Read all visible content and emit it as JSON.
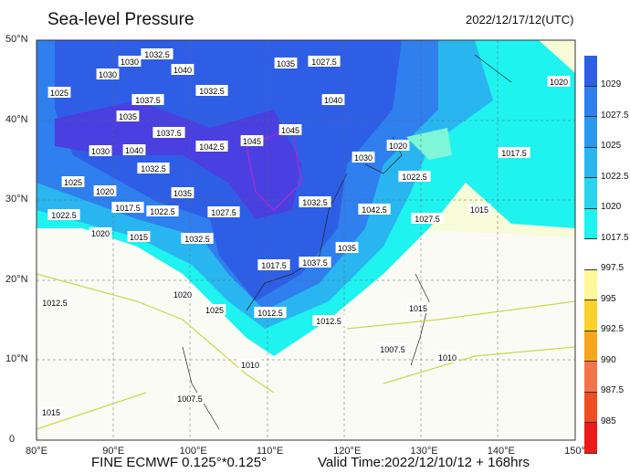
{
  "title": "Sea-level Pressure",
  "valid_time_utc": "2022/12/17/12(UTC)",
  "footer": {
    "model": "FINE ECMWF 0.125°*0.125°",
    "valid": "Valid Time:2022/12/10/12 + 168hrs"
  },
  "axes": {
    "lon_ticks": [
      "80°E",
      "90°E",
      "100°E",
      "110°E",
      "120°E",
      "130°E",
      "140°E",
      "150°E"
    ],
    "lat_ticks": [
      "50°N",
      "40°N",
      "30°N",
      "20°N",
      "10°N",
      "0"
    ]
  },
  "colorbar": {
    "labels": [
      "1029",
      "1027.5",
      "1025",
      "1022.5",
      "1020",
      "1017.5",
      "997.5",
      "995",
      "992.5",
      "990",
      "987.5",
      "985"
    ],
    "colors": [
      "#2e5ee6",
      "#2f7fef",
      "#2a98ef",
      "#29b6f0",
      "#27d4ee",
      "#1ef3f0",
      "#ffffff",
      "#fff799",
      "#fdd12a",
      "#f9a51c",
      "#f4744a",
      "#ee4e22",
      "#ee1a1a"
    ]
  },
  "contour_labels": [
    "1032.5",
    "1030",
    "1040",
    "1030",
    "1035",
    "1037.5",
    "1027.5",
    "1035",
    "1032.5",
    "1040",
    "1025",
    "1020",
    "1045",
    "1030",
    "1040",
    "1037.5",
    "1042.5",
    "1045",
    "1030",
    "1020",
    "1022.5",
    "1020",
    "1025",
    "1032.5",
    "1035",
    "1017.5",
    "1022.5",
    "1032.5",
    "1027.5",
    "1042.5",
    "1027.5",
    "1015",
    "1020",
    "1015",
    "1022.5",
    "1032.5",
    "1035",
    "1037.5",
    "1017.5",
    "1020",
    "1025",
    "1012.5",
    "1012.5",
    "1012.5",
    "1015",
    "1010",
    "1007.5",
    "1010",
    "1007.5",
    "1015",
    "1017.5"
  ]
}
